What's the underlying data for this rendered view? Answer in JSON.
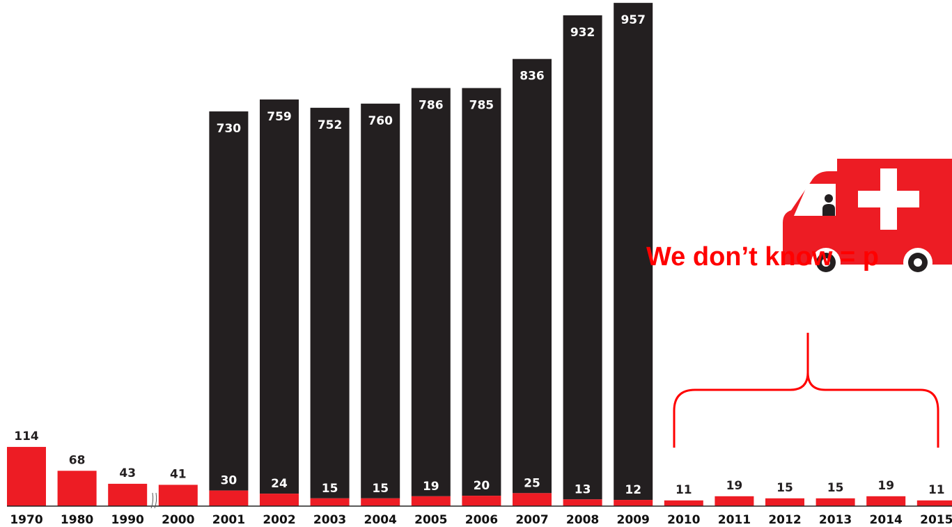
{
  "chart_data": {
    "type": "bar",
    "categories": [
      "1970",
      "1980",
      "1990",
      "2000",
      "2001",
      "2002",
      "2003",
      "2004",
      "2005",
      "2006",
      "2007",
      "2008",
      "2009",
      "2010",
      "2011",
      "2012",
      "2013",
      "2014",
      "2015"
    ],
    "series": [
      {
        "values": [
          114,
          68,
          43,
          41,
          30,
          24,
          15,
          15,
          19,
          20,
          25,
          13,
          12,
          11,
          19,
          15,
          15,
          19,
          11
        ],
        "color": "#ed1c24"
      },
      {
        "values": [
          null,
          null,
          null,
          null,
          730,
          759,
          752,
          760,
          786,
          785,
          836,
          932,
          957,
          null,
          null,
          null,
          null,
          null,
          null
        ],
        "color": "#231f20"
      }
    ],
    "axis_break_after": "1990",
    "grid": false,
    "legend": "none"
  },
  "annotation": {
    "text": "We don’t know = p",
    "color": "#ff0000",
    "bracket_span": [
      "2010",
      "2015"
    ],
    "icon": "ambulance-icon"
  }
}
